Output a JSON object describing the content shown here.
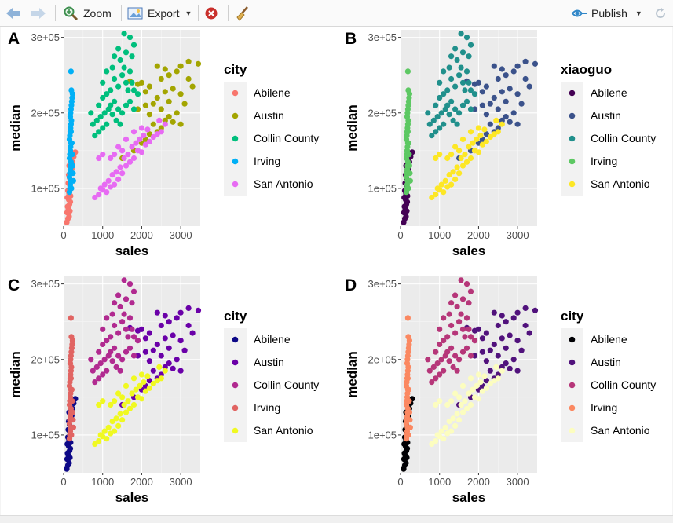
{
  "toolbar": {
    "zoom_label": "Zoom",
    "export_label": "Export",
    "publish_label": "Publish"
  },
  "panels": [
    {
      "tag": "A",
      "legend_title": "city",
      "colors": [
        "#F8766D",
        "#A3A500",
        "#00BF7D",
        "#00B0F6",
        "#E76BF3"
      ]
    },
    {
      "tag": "B",
      "legend_title": "xiaoguo",
      "colors": [
        "#440154",
        "#3B528B",
        "#21908C",
        "#5DC863",
        "#FDE725"
      ]
    },
    {
      "tag": "C",
      "legend_title": "city",
      "colors": [
        "#0D0887",
        "#6A00A8",
        "#B12A90",
        "#E16462",
        "#F0F921"
      ]
    },
    {
      "tag": "D",
      "legend_title": "city",
      "colors": [
        "#000004",
        "#51127C",
        "#B63679",
        "#FB8861",
        "#FCFDBF"
      ]
    }
  ],
  "chart_data": {
    "type": "scatter",
    "xlabel": "sales",
    "ylabel": "median",
    "xlim": [
      0,
      3500
    ],
    "ylim": [
      50000,
      310000
    ],
    "x_ticks": [
      0,
      1000,
      2000,
      3000
    ],
    "x_tick_labels": [
      "0",
      "1000",
      "2000",
      "3000"
    ],
    "y_ticks": [
      100000,
      200000,
      300000
    ],
    "y_tick_labels": [
      "1e+05",
      "2e+05",
      "3e+05"
    ],
    "grid": true,
    "legend_position": "right",
    "series_names": [
      "Abilene",
      "Austin",
      "Collin County",
      "Irving",
      "San Antonio"
    ],
    "series": [
      {
        "name": "Abilene",
        "points": [
          [
            80,
            55000
          ],
          [
            110,
            60000
          ],
          [
            140,
            63000
          ],
          [
            90,
            68000
          ],
          [
            160,
            70000
          ],
          [
            120,
            73000
          ],
          [
            100,
            76000
          ],
          [
            150,
            79000
          ],
          [
            170,
            82000
          ],
          [
            130,
            85000
          ],
          [
            95,
            88000
          ],
          [
            180,
            90000
          ],
          [
            140,
            93000
          ],
          [
            110,
            97000
          ],
          [
            190,
            100000
          ],
          [
            160,
            104000
          ],
          [
            120,
            107000
          ],
          [
            200,
            110000
          ],
          [
            150,
            114000
          ],
          [
            130,
            118000
          ],
          [
            175,
            122000
          ],
          [
            210,
            126000
          ],
          [
            140,
            130000
          ],
          [
            230,
            135000
          ],
          [
            260,
            142000
          ],
          [
            300,
            148000
          ]
        ]
      },
      {
        "name": "Austin",
        "points": [
          [
            1500,
            140000
          ],
          [
            1800,
            150000
          ],
          [
            2000,
            160000
          ],
          [
            2100,
            165000
          ],
          [
            2200,
            172000
          ],
          [
            2400,
            175000
          ],
          [
            2500,
            180000
          ],
          [
            2300,
            185000
          ],
          [
            2600,
            190000
          ],
          [
            2800,
            188000
          ],
          [
            3000,
            185000
          ],
          [
            2700,
            195000
          ],
          [
            2900,
            200000
          ],
          [
            2200,
            198000
          ],
          [
            1900,
            205000
          ],
          [
            2100,
            210000
          ],
          [
            2300,
            212000
          ],
          [
            2500,
            205000
          ],
          [
            2700,
            215000
          ],
          [
            3100,
            212000
          ],
          [
            2400,
            220000
          ],
          [
            2600,
            228000
          ],
          [
            2800,
            232000
          ],
          [
            3000,
            225000
          ],
          [
            2200,
            235000
          ],
          [
            2000,
            240000
          ],
          [
            2500,
            245000
          ],
          [
            2700,
            250000
          ],
          [
            2900,
            255000
          ],
          [
            3200,
            245000
          ],
          [
            3300,
            235000
          ],
          [
            3000,
            262000
          ],
          [
            3200,
            268000
          ],
          [
            3450,
            265000
          ],
          [
            2400,
            262000
          ],
          [
            2600,
            258000
          ],
          [
            1900,
            238000
          ],
          [
            2100,
            228000
          ],
          [
            1700,
            242000
          ]
        ]
      },
      {
        "name": "Collin County",
        "points": [
          [
            800,
            170000
          ],
          [
            900,
            175000
          ],
          [
            1000,
            180000
          ],
          [
            1100,
            185000
          ],
          [
            850,
            190000
          ],
          [
            950,
            195000
          ],
          [
            1050,
            200000
          ],
          [
            1150,
            205000
          ],
          [
            1250,
            198000
          ],
          [
            1350,
            190000
          ],
          [
            1450,
            185000
          ],
          [
            1200,
            210000
          ],
          [
            1300,
            215000
          ],
          [
            1000,
            220000
          ],
          [
            900,
            210000
          ],
          [
            1100,
            225000
          ],
          [
            1200,
            230000
          ],
          [
            1400,
            205000
          ],
          [
            1500,
            200000
          ],
          [
            1600,
            210000
          ],
          [
            1700,
            215000
          ],
          [
            1800,
            205000
          ],
          [
            1650,
            230000
          ],
          [
            1400,
            235000
          ],
          [
            1300,
            245000
          ],
          [
            1500,
            250000
          ],
          [
            1550,
            260000
          ],
          [
            1700,
            255000
          ],
          [
            1450,
            270000
          ],
          [
            1300,
            275000
          ],
          [
            1600,
            280000
          ],
          [
            1750,
            275000
          ],
          [
            1800,
            290000
          ],
          [
            1400,
            285000
          ],
          [
            1550,
            305000
          ],
          [
            1700,
            300000
          ],
          [
            1250,
            260000
          ],
          [
            1100,
            255000
          ],
          [
            1000,
            240000
          ],
          [
            1600,
            240000
          ],
          [
            1750,
            240000
          ],
          [
            1800,
            230000
          ],
          [
            1900,
            225000
          ],
          [
            700,
            200000
          ],
          [
            750,
            185000
          ]
        ]
      },
      {
        "name": "Irving",
        "points": [
          [
            150,
            95000
          ],
          [
            160,
            100000
          ],
          [
            170,
            105000
          ],
          [
            180,
            110000
          ],
          [
            150,
            115000
          ],
          [
            160,
            120000
          ],
          [
            170,
            125000
          ],
          [
            180,
            130000
          ],
          [
            190,
            135000
          ],
          [
            150,
            140000
          ],
          [
            160,
            145000
          ],
          [
            170,
            150000
          ],
          [
            180,
            155000
          ],
          [
            190,
            160000
          ],
          [
            150,
            165000
          ],
          [
            160,
            170000
          ],
          [
            170,
            175000
          ],
          [
            180,
            180000
          ],
          [
            190,
            185000
          ],
          [
            200,
            190000
          ],
          [
            170,
            195000
          ],
          [
            180,
            200000
          ],
          [
            190,
            205000
          ],
          [
            200,
            210000
          ],
          [
            210,
            215000
          ],
          [
            220,
            220000
          ],
          [
            230,
            225000
          ],
          [
            200,
            230000
          ],
          [
            190,
            175000
          ],
          [
            210,
            160000
          ],
          [
            220,
            145000
          ],
          [
            230,
            130000
          ],
          [
            240,
            120000
          ],
          [
            250,
            110000
          ],
          [
            200,
            100000
          ],
          [
            190,
            255000
          ]
        ]
      },
      {
        "name": "San Antonio",
        "points": [
          [
            800,
            88000
          ],
          [
            900,
            92000
          ],
          [
            1000,
            98000
          ],
          [
            1100,
            95000
          ],
          [
            1200,
            102000
          ],
          [
            1050,
            105000
          ],
          [
            950,
            100000
          ],
          [
            1150,
            110000
          ],
          [
            1300,
            105000
          ],
          [
            1400,
            112000
          ],
          [
            1250,
            118000
          ],
          [
            1350,
            122000
          ],
          [
            1500,
            120000
          ],
          [
            1450,
            128000
          ],
          [
            1600,
            130000
          ],
          [
            1550,
            140000
          ],
          [
            1700,
            135000
          ],
          [
            1800,
            140000
          ],
          [
            1650,
            145000
          ],
          [
            1900,
            150000
          ],
          [
            2000,
            148000
          ],
          [
            1750,
            155000
          ],
          [
            1850,
            160000
          ],
          [
            2100,
            158000
          ],
          [
            1950,
            165000
          ],
          [
            2200,
            162000
          ],
          [
            2050,
            170000
          ],
          [
            2300,
            168000
          ],
          [
            2400,
            172000
          ],
          [
            2150,
            178000
          ],
          [
            2500,
            175000
          ],
          [
            2000,
            180000
          ],
          [
            1800,
            175000
          ],
          [
            1600,
            165000
          ],
          [
            1400,
            155000
          ],
          [
            1300,
            145000
          ],
          [
            1200,
            140000
          ],
          [
            1000,
            145000
          ],
          [
            900,
            140000
          ],
          [
            1500,
            150000
          ],
          [
            2600,
            185000
          ],
          [
            2450,
            190000
          ]
        ]
      }
    ]
  }
}
